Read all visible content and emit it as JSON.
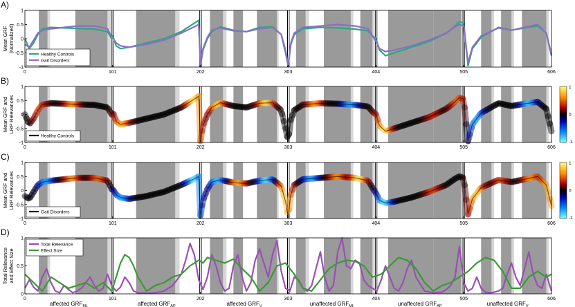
{
  "chart_data": [
    {
      "type": "line",
      "panel_label": "A)",
      "ylabel_lines": [
        "Mean GRF",
        "(Normalized)"
      ],
      "xlim": [
        0,
        606
      ],
      "ylim": [
        -1,
        1
      ],
      "xticks": [
        0,
        101,
        202,
        303,
        404,
        505,
        606
      ],
      "yticks": [
        -1,
        -0.5,
        0,
        0.5,
        1
      ],
      "ytick_labels": [
        "-1",
        "-0.5",
        "0",
        "0.5",
        "1"
      ],
      "legend": {
        "placement": "bottom-left",
        "entries": [
          {
            "label": "Healthy Controls",
            "color": "#2ca87f"
          },
          {
            "label": "Gait Disorders",
            "color": "#8a6fc4"
          }
        ]
      },
      "series": [
        {
          "name": "Healthy Controls",
          "color": "#2ca87f",
          "x": [
            0,
            5,
            10,
            15,
            20,
            30,
            45,
            60,
            80,
            95,
            100,
            101,
            105,
            110,
            120,
            140,
            160,
            180,
            195,
            200,
            202,
            205,
            210,
            215,
            225,
            240,
            255,
            270,
            285,
            295,
            300,
            303,
            306,
            310,
            320,
            340,
            360,
            380,
            395,
            400,
            404,
            408,
            415,
            425,
            445,
            465,
            485,
            495,
            500,
            505,
            510,
            515,
            525,
            545,
            560,
            575,
            590,
            600,
            606
          ],
          "y": [
            0,
            -0.35,
            -0.15,
            0.15,
            0.35,
            0.4,
            0.38,
            0.36,
            0.34,
            0.25,
            0,
            0.1,
            -0.25,
            -0.35,
            -0.3,
            -0.15,
            0,
            0.25,
            0.55,
            0.65,
            -0.95,
            -0.4,
            0,
            0.25,
            0.42,
            0.3,
            0.25,
            0.4,
            0.42,
            0.15,
            -0.5,
            -0.95,
            -0.2,
            0.15,
            0.35,
            0.4,
            0.38,
            0.34,
            0.28,
            0.1,
            0,
            -0.4,
            -0.6,
            -0.5,
            -0.3,
            -0.1,
            0.2,
            0.45,
            0.6,
            0.55,
            -0.95,
            -0.35,
            0.05,
            0.4,
            0.3,
            0.38,
            0.45,
            0.2,
            -0.6
          ]
        },
        {
          "name": "Gait Disorders",
          "color": "#8a6fc4",
          "x": [
            0,
            5,
            10,
            15,
            20,
            30,
            45,
            60,
            80,
            95,
            100,
            101,
            105,
            110,
            120,
            140,
            160,
            180,
            195,
            200,
            202,
            205,
            210,
            215,
            225,
            240,
            255,
            270,
            285,
            295,
            300,
            303,
            306,
            310,
            320,
            340,
            360,
            380,
            395,
            400,
            404,
            408,
            415,
            425,
            445,
            465,
            485,
            495,
            500,
            505,
            510,
            515,
            525,
            545,
            560,
            575,
            590,
            600,
            606
          ],
          "y": [
            -0.2,
            -0.3,
            -0.05,
            0.2,
            0.3,
            0.35,
            0.4,
            0.45,
            0.45,
            0.35,
            0.05,
            0.05,
            -0.15,
            -0.25,
            -0.3,
            -0.2,
            -0.05,
            0.2,
            0.42,
            0.5,
            -0.9,
            -0.35,
            0.05,
            0.3,
            0.38,
            0.28,
            0.25,
            0.35,
            0.4,
            0.15,
            -0.4,
            -0.95,
            -0.15,
            0.2,
            0.4,
            0.45,
            0.5,
            0.45,
            0.35,
            0.1,
            -0.1,
            -0.35,
            -0.45,
            -0.4,
            -0.25,
            -0.05,
            0.2,
            0.42,
            0.5,
            0.45,
            -0.85,
            -0.3,
            0.1,
            0.38,
            0.3,
            0.4,
            0.5,
            0.2,
            -0.55
          ]
        }
      ]
    },
    {
      "type": "line",
      "panel_label": "B)",
      "ylabel_lines": [
        "Mean GRF and",
        "LRP Relevances"
      ],
      "xlim": [
        0,
        606
      ],
      "ylim": [
        -1,
        1
      ],
      "xticks": [
        0,
        101,
        202,
        303,
        404,
        505,
        606
      ],
      "yticks": [
        -1,
        -0.5,
        0,
        0.5,
        1
      ],
      "ytick_labels": [
        "-1",
        "-0.5",
        "0",
        "0.5",
        "1"
      ],
      "legend": {
        "placement": "bottom-left",
        "entries": [
          {
            "label": "Healthy Controls",
            "color": "#000000"
          }
        ]
      },
      "colorbar": {
        "ticks": [
          "1",
          "0",
          "-1"
        ]
      },
      "series": [
        {
          "name": "Healthy Controls",
          "color": "#000000",
          "x": [
            0,
            5,
            10,
            15,
            20,
            30,
            45,
            60,
            80,
            95,
            100,
            101,
            105,
            110,
            120,
            140,
            160,
            180,
            195,
            200,
            202,
            205,
            210,
            215,
            225,
            240,
            255,
            270,
            285,
            295,
            300,
            303,
            306,
            310,
            320,
            340,
            360,
            380,
            395,
            400,
            404,
            408,
            415,
            425,
            445,
            465,
            485,
            495,
            500,
            505,
            510,
            515,
            525,
            545,
            560,
            575,
            590,
            600,
            606
          ],
          "y": [
            0,
            -0.35,
            -0.15,
            0.15,
            0.35,
            0.4,
            0.38,
            0.36,
            0.34,
            0.25,
            0,
            0.1,
            -0.25,
            -0.35,
            -0.3,
            -0.15,
            0,
            0.25,
            0.55,
            0.65,
            -0.95,
            -0.4,
            0,
            0.25,
            0.42,
            0.3,
            0.25,
            0.4,
            0.42,
            0.15,
            -0.5,
            -0.95,
            -0.2,
            0.15,
            0.35,
            0.4,
            0.38,
            0.34,
            0.28,
            0.1,
            0,
            -0.4,
            -0.6,
            -0.5,
            -0.3,
            -0.1,
            0.2,
            0.45,
            0.6,
            0.55,
            -0.95,
            -0.35,
            0.05,
            0.4,
            0.3,
            0.38,
            0.45,
            0.2,
            -0.6
          ]
        }
      ]
    },
    {
      "type": "line",
      "panel_label": "C)",
      "ylabel_lines": [
        "Mean GRF and",
        "LRP Relevances"
      ],
      "xlim": [
        0,
        606
      ],
      "ylim": [
        -1,
        1
      ],
      "xticks": [
        0,
        101,
        202,
        303,
        404,
        505,
        606
      ],
      "yticks": [
        -1,
        -0.5,
        0,
        0.5,
        1
      ],
      "ytick_labels": [
        "-1",
        "-0.5",
        "0",
        "0.5",
        "1"
      ],
      "legend": {
        "placement": "bottom-left",
        "entries": [
          {
            "label": "Gait Disorders",
            "color": "#000000"
          }
        ]
      },
      "colorbar": {
        "ticks": [
          "1",
          "0",
          "-1"
        ]
      },
      "series": [
        {
          "name": "Gait Disorders",
          "color": "#000000",
          "x": [
            0,
            5,
            10,
            15,
            20,
            30,
            45,
            60,
            80,
            95,
            100,
            101,
            105,
            110,
            120,
            140,
            160,
            180,
            195,
            200,
            202,
            205,
            210,
            215,
            225,
            240,
            255,
            270,
            285,
            295,
            300,
            303,
            306,
            310,
            320,
            340,
            360,
            380,
            395,
            400,
            404,
            408,
            415,
            425,
            445,
            465,
            485,
            495,
            500,
            505,
            510,
            515,
            525,
            545,
            560,
            575,
            590,
            600,
            606
          ],
          "y": [
            -0.2,
            -0.3,
            -0.05,
            0.2,
            0.3,
            0.35,
            0.4,
            0.45,
            0.45,
            0.35,
            0.05,
            0.05,
            -0.15,
            -0.25,
            -0.3,
            -0.2,
            -0.05,
            0.2,
            0.42,
            0.5,
            -0.9,
            -0.35,
            0.05,
            0.3,
            0.38,
            0.28,
            0.25,
            0.35,
            0.4,
            0.15,
            -0.4,
            -0.95,
            -0.15,
            0.2,
            0.4,
            0.45,
            0.5,
            0.45,
            0.35,
            0.1,
            -0.1,
            -0.35,
            -0.45,
            -0.4,
            -0.25,
            -0.05,
            0.2,
            0.42,
            0.5,
            0.45,
            -0.85,
            -0.3,
            0.1,
            0.38,
            0.3,
            0.4,
            0.5,
            0.2,
            -0.55
          ]
        }
      ]
    },
    {
      "type": "line",
      "panel_label": "D)",
      "ylabel_lines": [
        "Total Relevance",
        "and Effect Size"
      ],
      "xlim": [
        0,
        606
      ],
      "ylim": [
        0,
        1
      ],
      "xticks": [
        0,
        101,
        202,
        303,
        404,
        505,
        606
      ],
      "yticks": [
        0,
        0.5,
        1
      ],
      "ytick_labels": [
        "0",
        "0.5",
        "1"
      ],
      "legend": {
        "placement": "top-left",
        "entries": [
          {
            "label": "Total Relevance",
            "color": "#9a4fb5"
          },
          {
            "label": "Effect Size",
            "color": "#3a9a35"
          }
        ]
      },
      "x_group_labels": [
        {
          "text": "affected GRF",
          "sub": "ML",
          "center": 50.5
        },
        {
          "text": "affected GRF",
          "sub": "AP",
          "center": 151.5
        },
        {
          "text": "affected GRF",
          "sub": "V",
          "center": 252.5
        },
        {
          "text": "unaffected GRF",
          "sub": "ML",
          "center": 353.5
        },
        {
          "text": "unaffected GRF",
          "sub": "AP",
          "center": 454.5
        },
        {
          "text": "unaffected GRF",
          "sub": "V",
          "center": 555.5
        }
      ],
      "series": [
        {
          "name": "Total Relevance",
          "color": "#9a4fb5",
          "x": [
            0,
            5,
            10,
            15,
            20,
            25,
            30,
            35,
            40,
            45,
            50,
            55,
            60,
            65,
            70,
            75,
            80,
            85,
            90,
            95,
            100,
            105,
            110,
            115,
            120,
            125,
            130,
            140,
            150,
            160,
            170,
            180,
            185,
            190,
            195,
            200,
            205,
            210,
            215,
            220,
            225,
            230,
            235,
            240,
            245,
            250,
            255,
            260,
            265,
            270,
            275,
            280,
            285,
            290,
            295,
            300,
            305,
            310,
            315,
            320,
            325,
            330,
            335,
            340,
            345,
            350,
            355,
            360,
            365,
            370,
            375,
            380,
            385,
            390,
            395,
            400,
            405,
            410,
            415,
            420,
            425,
            430,
            435,
            440,
            445,
            450,
            460,
            470,
            480,
            485,
            490,
            495,
            500,
            505,
            510,
            515,
            520,
            525,
            530,
            535,
            540,
            545,
            550,
            555,
            560,
            565,
            570,
            575,
            580,
            585,
            590,
            595,
            600,
            606
          ],
          "y": [
            0.1,
            0.25,
            0.12,
            0.05,
            0.3,
            0.45,
            0.2,
            0.05,
            0.02,
            0.15,
            0.08,
            0.02,
            0.05,
            0.1,
            0.2,
            0.3,
            0.15,
            0.05,
            0.1,
            0.35,
            0.15,
            0.05,
            0.12,
            0.3,
            0.2,
            0.05,
            0.02,
            0.01,
            0.02,
            0.05,
            0.15,
            0.35,
            0.6,
            0.9,
            0.7,
            0.25,
            0.08,
            0.3,
            0.7,
            0.5,
            0.2,
            0.05,
            0.1,
            0.5,
            0.7,
            0.3,
            0.05,
            0.2,
            0.6,
            0.8,
            0.55,
            0.3,
            0.7,
            0.95,
            0.4,
            0.1,
            0.05,
            0.3,
            0.25,
            0.1,
            0.05,
            0.15,
            0.45,
            0.75,
            0.3,
            0.05,
            0.15,
            0.75,
            1.0,
            0.5,
            0.45,
            0.6,
            0.55,
            0.25,
            0.15,
            0.1,
            0.05,
            0.25,
            0.5,
            0.3,
            0.1,
            0.05,
            0.2,
            0.45,
            0.6,
            0.3,
            0.05,
            0.02,
            0.03,
            0.08,
            0.15,
            0.3,
            0.85,
            0.2,
            0.05,
            0.1,
            0.3,
            0.1,
            0.03,
            0.02,
            0.03,
            0.05,
            0.1,
            0.35,
            0.55,
            0.3,
            0.15,
            0.45,
            0.75,
            0.35,
            0.15,
            0.1,
            0.35,
            0.05
          ]
        },
        {
          "name": "Effect Size",
          "color": "#3a9a35",
          "x": [
            0,
            10,
            20,
            30,
            40,
            50,
            60,
            70,
            80,
            90,
            100,
            105,
            110,
            115,
            120,
            125,
            130,
            140,
            150,
            160,
            170,
            180,
            190,
            200,
            205,
            210,
            220,
            230,
            240,
            250,
            260,
            270,
            280,
            290,
            300,
            310,
            320,
            330,
            340,
            350,
            360,
            370,
            380,
            390,
            400,
            410,
            420,
            430,
            440,
            450,
            460,
            470,
            480,
            490,
            500,
            510,
            520,
            530,
            540,
            550,
            560,
            570,
            580,
            590,
            600,
            606
          ],
          "y": [
            0.35,
            0.2,
            0.05,
            0.3,
            0.2,
            0.1,
            0.15,
            0.2,
            0.1,
            0.2,
            0.05,
            0.3,
            0.55,
            0.7,
            0.65,
            0.5,
            0.3,
            0.05,
            0.15,
            0.2,
            0.3,
            0.35,
            0.5,
            0.6,
            0.55,
            0.65,
            0.6,
            0.55,
            0.62,
            0.45,
            0.3,
            0.05,
            0.2,
            0.5,
            0.55,
            0.35,
            0.1,
            0.05,
            0.25,
            0.45,
            0.55,
            0.6,
            0.58,
            0.5,
            0.3,
            0.35,
            0.5,
            0.65,
            0.6,
            0.45,
            0.2,
            0.05,
            0.15,
            0.2,
            0.3,
            0.4,
            0.55,
            0.65,
            0.6,
            0.4,
            0.1,
            0.1,
            0.3,
            0.4,
            0.3,
            0.35
          ]
        }
      ]
    }
  ]
}
